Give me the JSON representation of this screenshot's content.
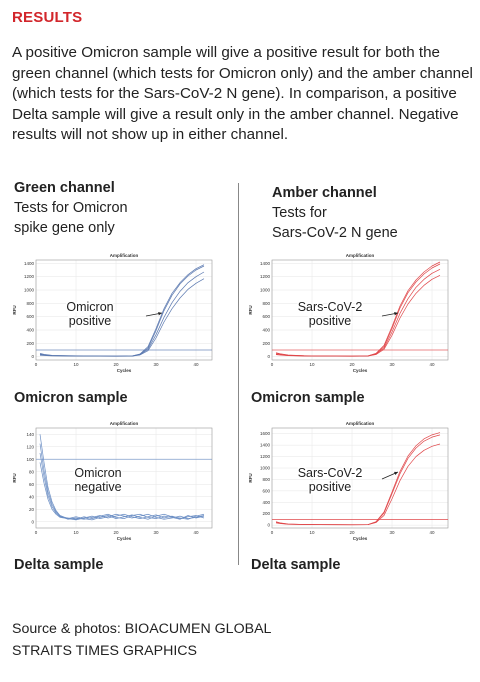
{
  "header": {
    "title": "RESULTS",
    "intro": "A positive Omicron sample will give a positive result for both the green channel (which tests for Omicron only) and the amber channel (which tests for the Sars-CoV-2 N gene). In comparison, a positive Delta sample will give a result only in the amber channel. Negative results will not show up in either channel."
  },
  "columns": [
    {
      "title": "Green channel",
      "subtitle_lines": [
        "Tests for Omicron",
        "spike gene only"
      ]
    },
    {
      "title": "Amber channel",
      "subtitle_lines": [
        "Tests for",
        "Sars-CoV-2 N gene"
      ]
    }
  ],
  "samples": [
    "Omicron sample",
    "Delta sample",
    "Omicron sample",
    "Delta sample"
  ],
  "source_lines": [
    "Source & photos: BIOACUMEN GLOBAL",
    "STRAITS TIMES GRAPHICS"
  ],
  "chart_data": [
    {
      "type": "line",
      "title": "Amplification",
      "xlabel": "Cycles",
      "ylabel": "RFU",
      "color": "#5b79b0",
      "xlim": [
        0,
        44
      ],
      "ylim": [
        -50,
        1450
      ],
      "xticks": [
        0,
        10,
        20,
        30,
        40
      ],
      "yticks": [
        0,
        200,
        400,
        600,
        800,
        1000,
        1200,
        1400
      ],
      "threshold": 100,
      "annotation_lines": [
        "Omicron",
        "positive"
      ],
      "series": [
        {
          "x": [
            1,
            2,
            4,
            8,
            12,
            16,
            20,
            24,
            26,
            28,
            30,
            32,
            34,
            36,
            38,
            40,
            42
          ],
          "y": [
            50,
            35,
            20,
            15,
            12,
            10,
            8,
            10,
            40,
            150,
            420,
            720,
            950,
            1110,
            1230,
            1320,
            1380
          ]
        },
        {
          "x": [
            1,
            2,
            4,
            8,
            12,
            16,
            20,
            24,
            26,
            28,
            30,
            32,
            34,
            36,
            38,
            40,
            42
          ],
          "y": [
            40,
            30,
            18,
            14,
            11,
            9,
            8,
            10,
            35,
            130,
            390,
            690,
            920,
            1090,
            1210,
            1300,
            1360
          ]
        },
        {
          "x": [
            1,
            2,
            4,
            8,
            12,
            16,
            20,
            24,
            26,
            28,
            30,
            32,
            34,
            36,
            38,
            40,
            42
          ],
          "y": [
            30,
            25,
            15,
            12,
            10,
            8,
            7,
            9,
            30,
            110,
            330,
            590,
            810,
            980,
            1110,
            1200,
            1270
          ]
        },
        {
          "x": [
            1,
            2,
            4,
            8,
            12,
            16,
            20,
            24,
            26,
            28,
            30,
            32,
            34,
            36,
            38,
            40,
            42
          ],
          "y": [
            20,
            18,
            12,
            10,
            8,
            7,
            6,
            8,
            25,
            90,
            280,
            520,
            720,
            880,
            1010,
            1100,
            1170
          ]
        }
      ]
    },
    {
      "type": "line",
      "title": "Amplification",
      "xlabel": "Cycles",
      "ylabel": "RFU",
      "color": "#6b8ec4",
      "xlim": [
        0,
        44
      ],
      "ylim": [
        -10,
        150
      ],
      "xticks": [
        0,
        10,
        20,
        30,
        40
      ],
      "yticks": [
        0,
        20,
        40,
        60,
        80,
        100,
        120,
        140
      ],
      "threshold": 100,
      "annotation_lines": [
        "Omicron",
        "negative"
      ],
      "series": [
        {
          "x": [
            1,
            2,
            3,
            4,
            5,
            6,
            8,
            10,
            12,
            14,
            16,
            18,
            20,
            22,
            24,
            26,
            28,
            30,
            32,
            34,
            36,
            38,
            40,
            42
          ],
          "y": [
            140,
            95,
            55,
            32,
            18,
            10,
            5,
            3,
            6,
            9,
            5,
            8,
            12,
            9,
            6,
            9,
            12,
            7,
            4,
            6,
            9,
            5,
            7,
            10
          ]
        },
        {
          "x": [
            1,
            2,
            3,
            4,
            5,
            6,
            8,
            10,
            12,
            14,
            16,
            18,
            20,
            22,
            24,
            26,
            28,
            30,
            32,
            34,
            36,
            38,
            40,
            42
          ],
          "y": [
            125,
            82,
            48,
            28,
            16,
            9,
            4,
            6,
            4,
            7,
            10,
            6,
            9,
            12,
            8,
            5,
            8,
            11,
            6,
            9,
            5,
            8,
            10,
            6
          ]
        },
        {
          "x": [
            1,
            2,
            3,
            4,
            5,
            6,
            8,
            10,
            12,
            14,
            16,
            18,
            20,
            22,
            24,
            26,
            28,
            30,
            32,
            34,
            36,
            38,
            40,
            42
          ],
          "y": [
            110,
            72,
            42,
            24,
            14,
            8,
            6,
            4,
            8,
            5,
            9,
            12,
            7,
            5,
            10,
            12,
            7,
            5,
            9,
            7,
            4,
            10,
            6,
            9
          ]
        },
        {
          "x": [
            1,
            2,
            3,
            4,
            5,
            6,
            8,
            10,
            12,
            14,
            16,
            18,
            20,
            22,
            24,
            26,
            28,
            30,
            32,
            34,
            36,
            38,
            40,
            42
          ],
          "y": [
            95,
            62,
            36,
            20,
            12,
            7,
            5,
            8,
            5,
            3,
            7,
            10,
            5,
            8,
            11,
            7,
            4,
            9,
            12,
            8,
            6,
            4,
            9,
            12
          ]
        }
      ]
    },
    {
      "type": "line",
      "title": "Amplification",
      "xlabel": "Cycles",
      "ylabel": "RFU",
      "color": "#e0474a",
      "xlim": [
        0,
        44
      ],
      "ylim": [
        -50,
        1450
      ],
      "xticks": [
        0,
        10,
        20,
        30,
        40
      ],
      "yticks": [
        0,
        200,
        400,
        600,
        800,
        1000,
        1200,
        1400
      ],
      "threshold": 100,
      "annotation_lines": [
        "Sars-CoV-2",
        "positive"
      ],
      "series": [
        {
          "x": [
            1,
            2,
            4,
            8,
            12,
            16,
            20,
            24,
            26,
            28,
            30,
            32,
            34,
            36,
            38,
            40,
            42
          ],
          "y": [
            60,
            45,
            25,
            15,
            12,
            10,
            9,
            12,
            50,
            170,
            450,
            760,
            990,
            1150,
            1270,
            1360,
            1420
          ]
        },
        {
          "x": [
            1,
            2,
            4,
            8,
            12,
            16,
            20,
            24,
            26,
            28,
            30,
            32,
            34,
            36,
            38,
            40,
            42
          ],
          "y": [
            50,
            38,
            22,
            14,
            11,
            9,
            8,
            11,
            45,
            150,
            420,
            730,
            960,
            1120,
            1240,
            1330,
            1390
          ]
        },
        {
          "x": [
            1,
            2,
            4,
            8,
            12,
            16,
            20,
            24,
            26,
            28,
            30,
            32,
            34,
            36,
            38,
            40,
            42
          ],
          "y": [
            40,
            30,
            18,
            12,
            10,
            8,
            7,
            10,
            38,
            130,
            370,
            650,
            870,
            1040,
            1160,
            1250,
            1310
          ]
        },
        {
          "x": [
            1,
            2,
            4,
            8,
            12,
            16,
            20,
            24,
            26,
            28,
            30,
            32,
            34,
            36,
            38,
            40,
            42
          ],
          "y": [
            30,
            24,
            15,
            10,
            8,
            7,
            6,
            9,
            32,
            110,
            320,
            580,
            790,
            950,
            1070,
            1160,
            1220
          ]
        }
      ]
    },
    {
      "type": "line",
      "title": "Amplification",
      "xlabel": "Cycles",
      "ylabel": "RFU",
      "color": "#e0474a",
      "xlim": [
        0,
        44
      ],
      "ylim": [
        -50,
        1700
      ],
      "xticks": [
        0,
        10,
        20,
        30,
        40
      ],
      "yticks": [
        0,
        200,
        400,
        600,
        800,
        1000,
        1200,
        1400,
        1600
      ],
      "threshold": 100,
      "annotation_lines": [
        "Sars-CoV-2",
        "positive"
      ],
      "series": [
        {
          "x": [
            1,
            2,
            4,
            8,
            12,
            16,
            20,
            24,
            26,
            28,
            30,
            32,
            34,
            36,
            38,
            40,
            42
          ],
          "y": [
            60,
            40,
            20,
            12,
            10,
            9,
            8,
            10,
            60,
            230,
            580,
            940,
            1210,
            1390,
            1510,
            1580,
            1620
          ]
        },
        {
          "x": [
            1,
            2,
            4,
            8,
            12,
            16,
            20,
            24,
            26,
            28,
            30,
            32,
            34,
            36,
            38,
            40,
            42
          ],
          "y": [
            50,
            35,
            18,
            11,
            9,
            8,
            7,
            9,
            55,
            210,
            550,
            900,
            1170,
            1350,
            1470,
            1540,
            1580
          ]
        },
        {
          "x": [
            1,
            2,
            4,
            8,
            12,
            16,
            20,
            24,
            26,
            28,
            30,
            32,
            34,
            36,
            38,
            40,
            42
          ],
          "y": [
            40,
            28,
            15,
            10,
            8,
            7,
            6,
            8,
            45,
            170,
            460,
            780,
            1030,
            1200,
            1310,
            1380,
            1420
          ]
        }
      ]
    }
  ]
}
